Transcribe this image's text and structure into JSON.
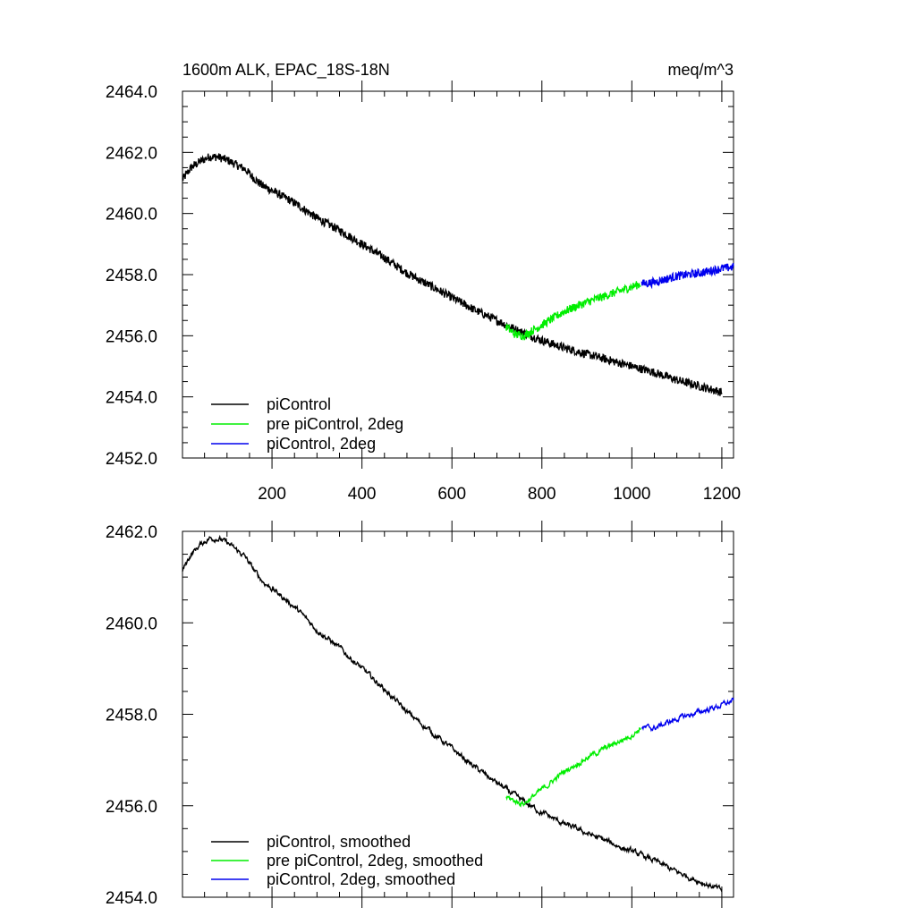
{
  "chart_data": [
    {
      "type": "line",
      "title": "1600m ALK, EPAC_18S-18N",
      "units": "meq/m^3",
      "xlabel": "",
      "ylabel": "",
      "xlim": [
        1,
        1226
      ],
      "ylim": [
        2452.0,
        2464.0
      ],
      "x_ticks": [
        200,
        400,
        600,
        800,
        1000,
        1200
      ],
      "x_tick_labels": [
        "200",
        "400",
        "600",
        "800",
        "1000",
        "1200"
      ],
      "y_ticks": [
        2452.0,
        2454.0,
        2456.0,
        2458.0,
        2460.0,
        2462.0,
        2464.0
      ],
      "y_tick_labels": [
        "2452.0",
        "2454.0",
        "2456.0",
        "2458.0",
        "2460.0",
        "2462.0",
        "2464.0"
      ],
      "legend_position": "bottom-left",
      "series": [
        {
          "name": "piControl",
          "color": "#000000",
          "x": [
            1,
            20,
            40,
            60,
            80,
            100,
            120,
            140,
            160,
            180,
            200,
            250,
            300,
            350,
            400,
            450,
            500,
            550,
            600,
            650,
            700,
            750,
            800,
            850,
            900,
            950,
            1000,
            1050,
            1100,
            1150,
            1200
          ],
          "y": [
            2461.1,
            2461.5,
            2461.7,
            2461.85,
            2461.85,
            2461.75,
            2461.6,
            2461.45,
            2461.15,
            2460.9,
            2460.75,
            2460.35,
            2459.85,
            2459.45,
            2459.0,
            2458.55,
            2458.05,
            2457.65,
            2457.25,
            2456.85,
            2456.5,
            2456.15,
            2455.85,
            2455.6,
            2455.4,
            2455.2,
            2455.0,
            2454.8,
            2454.55,
            2454.35,
            2454.15
          ]
        },
        {
          "name": "pre piControl, 2deg",
          "color": "#00ee00",
          "x": [
            720,
            740,
            760,
            800,
            850,
            900,
            950,
            1000,
            1020
          ],
          "y": [
            2456.3,
            2456.05,
            2456.0,
            2456.35,
            2456.8,
            2457.1,
            2457.35,
            2457.6,
            2457.7
          ]
        },
        {
          "name": "piControl, 2deg",
          "color": "#0000ee",
          "x": [
            1022,
            1050,
            1100,
            1150,
            1200,
            1226
          ],
          "y": [
            2457.7,
            2457.75,
            2457.95,
            2458.05,
            2458.2,
            2458.25
          ]
        }
      ]
    },
    {
      "type": "line",
      "title": "",
      "xlabel": "",
      "ylabel": "",
      "xlim": [
        1,
        1226
      ],
      "ylim": [
        2454.0,
        2462.0
      ],
      "x_ticks": [
        200,
        400,
        600,
        800,
        1000,
        1200
      ],
      "y_ticks": [
        2454.0,
        2456.0,
        2458.0,
        2460.0,
        2462.0
      ],
      "y_tick_labels": [
        "2454.0",
        "2456.0",
        "2458.0",
        "2460.0",
        "2462.0"
      ],
      "legend_position": "bottom-left",
      "series": [
        {
          "name": "piControl, smoothed",
          "color": "#000000",
          "x": [
            1,
            20,
            40,
            60,
            80,
            100,
            120,
            140,
            160,
            180,
            200,
            250,
            300,
            350,
            400,
            450,
            500,
            550,
            600,
            650,
            700,
            750,
            800,
            850,
            900,
            950,
            1000,
            1050,
            1100,
            1150,
            1200
          ],
          "y": [
            2461.15,
            2461.5,
            2461.7,
            2461.85,
            2461.85,
            2461.75,
            2461.6,
            2461.45,
            2461.15,
            2460.9,
            2460.75,
            2460.35,
            2459.85,
            2459.45,
            2459.0,
            2458.55,
            2458.05,
            2457.65,
            2457.25,
            2456.85,
            2456.5,
            2456.15,
            2455.85,
            2455.6,
            2455.4,
            2455.2,
            2455.0,
            2454.8,
            2454.55,
            2454.35,
            2454.15
          ]
        },
        {
          "name": "pre piControl, 2deg, smoothed",
          "color": "#00ee00",
          "x": [
            720,
            740,
            760,
            800,
            850,
            900,
            950,
            1000,
            1020
          ],
          "y": [
            2456.2,
            2456.1,
            2456.05,
            2456.35,
            2456.75,
            2457.05,
            2457.3,
            2457.55,
            2457.7
          ]
        },
        {
          "name": "piControl, 2deg, smoothed",
          "color": "#0000ee",
          "x": [
            1022,
            1050,
            1100,
            1150,
            1200,
            1226
          ],
          "y": [
            2457.7,
            2457.7,
            2457.9,
            2458.05,
            2458.2,
            2458.3
          ]
        }
      ]
    }
  ]
}
